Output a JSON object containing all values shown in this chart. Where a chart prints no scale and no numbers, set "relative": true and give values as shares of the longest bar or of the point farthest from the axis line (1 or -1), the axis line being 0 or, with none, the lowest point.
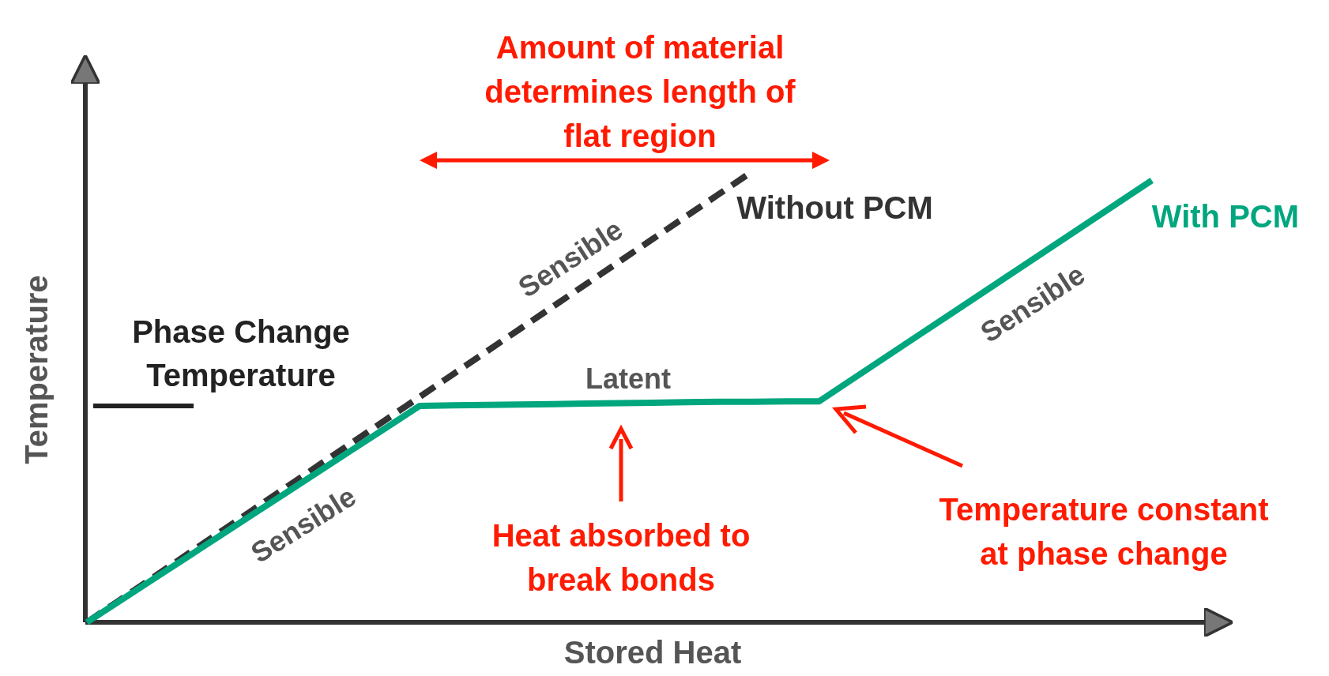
{
  "chart_data": {
    "type": "line",
    "relative": true,
    "xlabel": "Stored Heat",
    "ylabel": "Temperature",
    "grid": false,
    "legend": false,
    "marker": "none",
    "categories": [
      null,
      null,
      null,
      null,
      null,
      null,
      null,
      null,
      null,
      null,
      null,
      null,
      null,
      null,
      null,
      null,
      null,
      null,
      null,
      null,
      null,
      null,
      null,
      null,
      null,
      null,
      null,
      null,
      null,
      null,
      null,
      null,
      null,
      null,
      null
    ],
    "series": [
      {
        "name": "Without PCM",
        "color": "#333333",
        "line_style": "dashed",
        "values": [
          0,
          0.05,
          0.1,
          0.15,
          0.2,
          0.25,
          0.3,
          0.35,
          0.4,
          0.45,
          0.5,
          0.55,
          0.6,
          0.65,
          0.7,
          0.75,
          0.8,
          0.85,
          0.9,
          0.95,
          1,
          null,
          null,
          null,
          null,
          null,
          null,
          null,
          null,
          null,
          null,
          null,
          null,
          null,
          null
        ]
      },
      {
        "name": "With PCM",
        "color": "#00a67e",
        "line_style": "solid",
        "values": [
          0,
          0.048,
          0.096,
          0.144,
          0.192,
          0.24,
          0.288,
          0.336,
          0.384,
          0.432,
          0.48,
          0.481,
          0.482,
          0.483,
          0.484,
          0.485,
          0.486,
          0.487,
          0.488,
          0.489,
          0.489,
          0.49,
          0.49,
          0.539,
          0.588,
          0.637,
          0.686,
          0.735,
          0.784,
          0.833,
          0.882,
          0.931,
          0.98,
          null,
          null
        ]
      }
    ],
    "ref_lines": [
      {
        "axis": "y",
        "value": 0.48,
        "label": "Phase Change Temperature",
        "color": "#222222"
      }
    ],
    "annotations": [
      "Sensible",
      "Sensible",
      "Sensible",
      "Latent",
      "Amount of material determines length of flat region",
      "Heat absorbed to break bonds",
      "Temperature constant at phase change"
    ]
  }
}
